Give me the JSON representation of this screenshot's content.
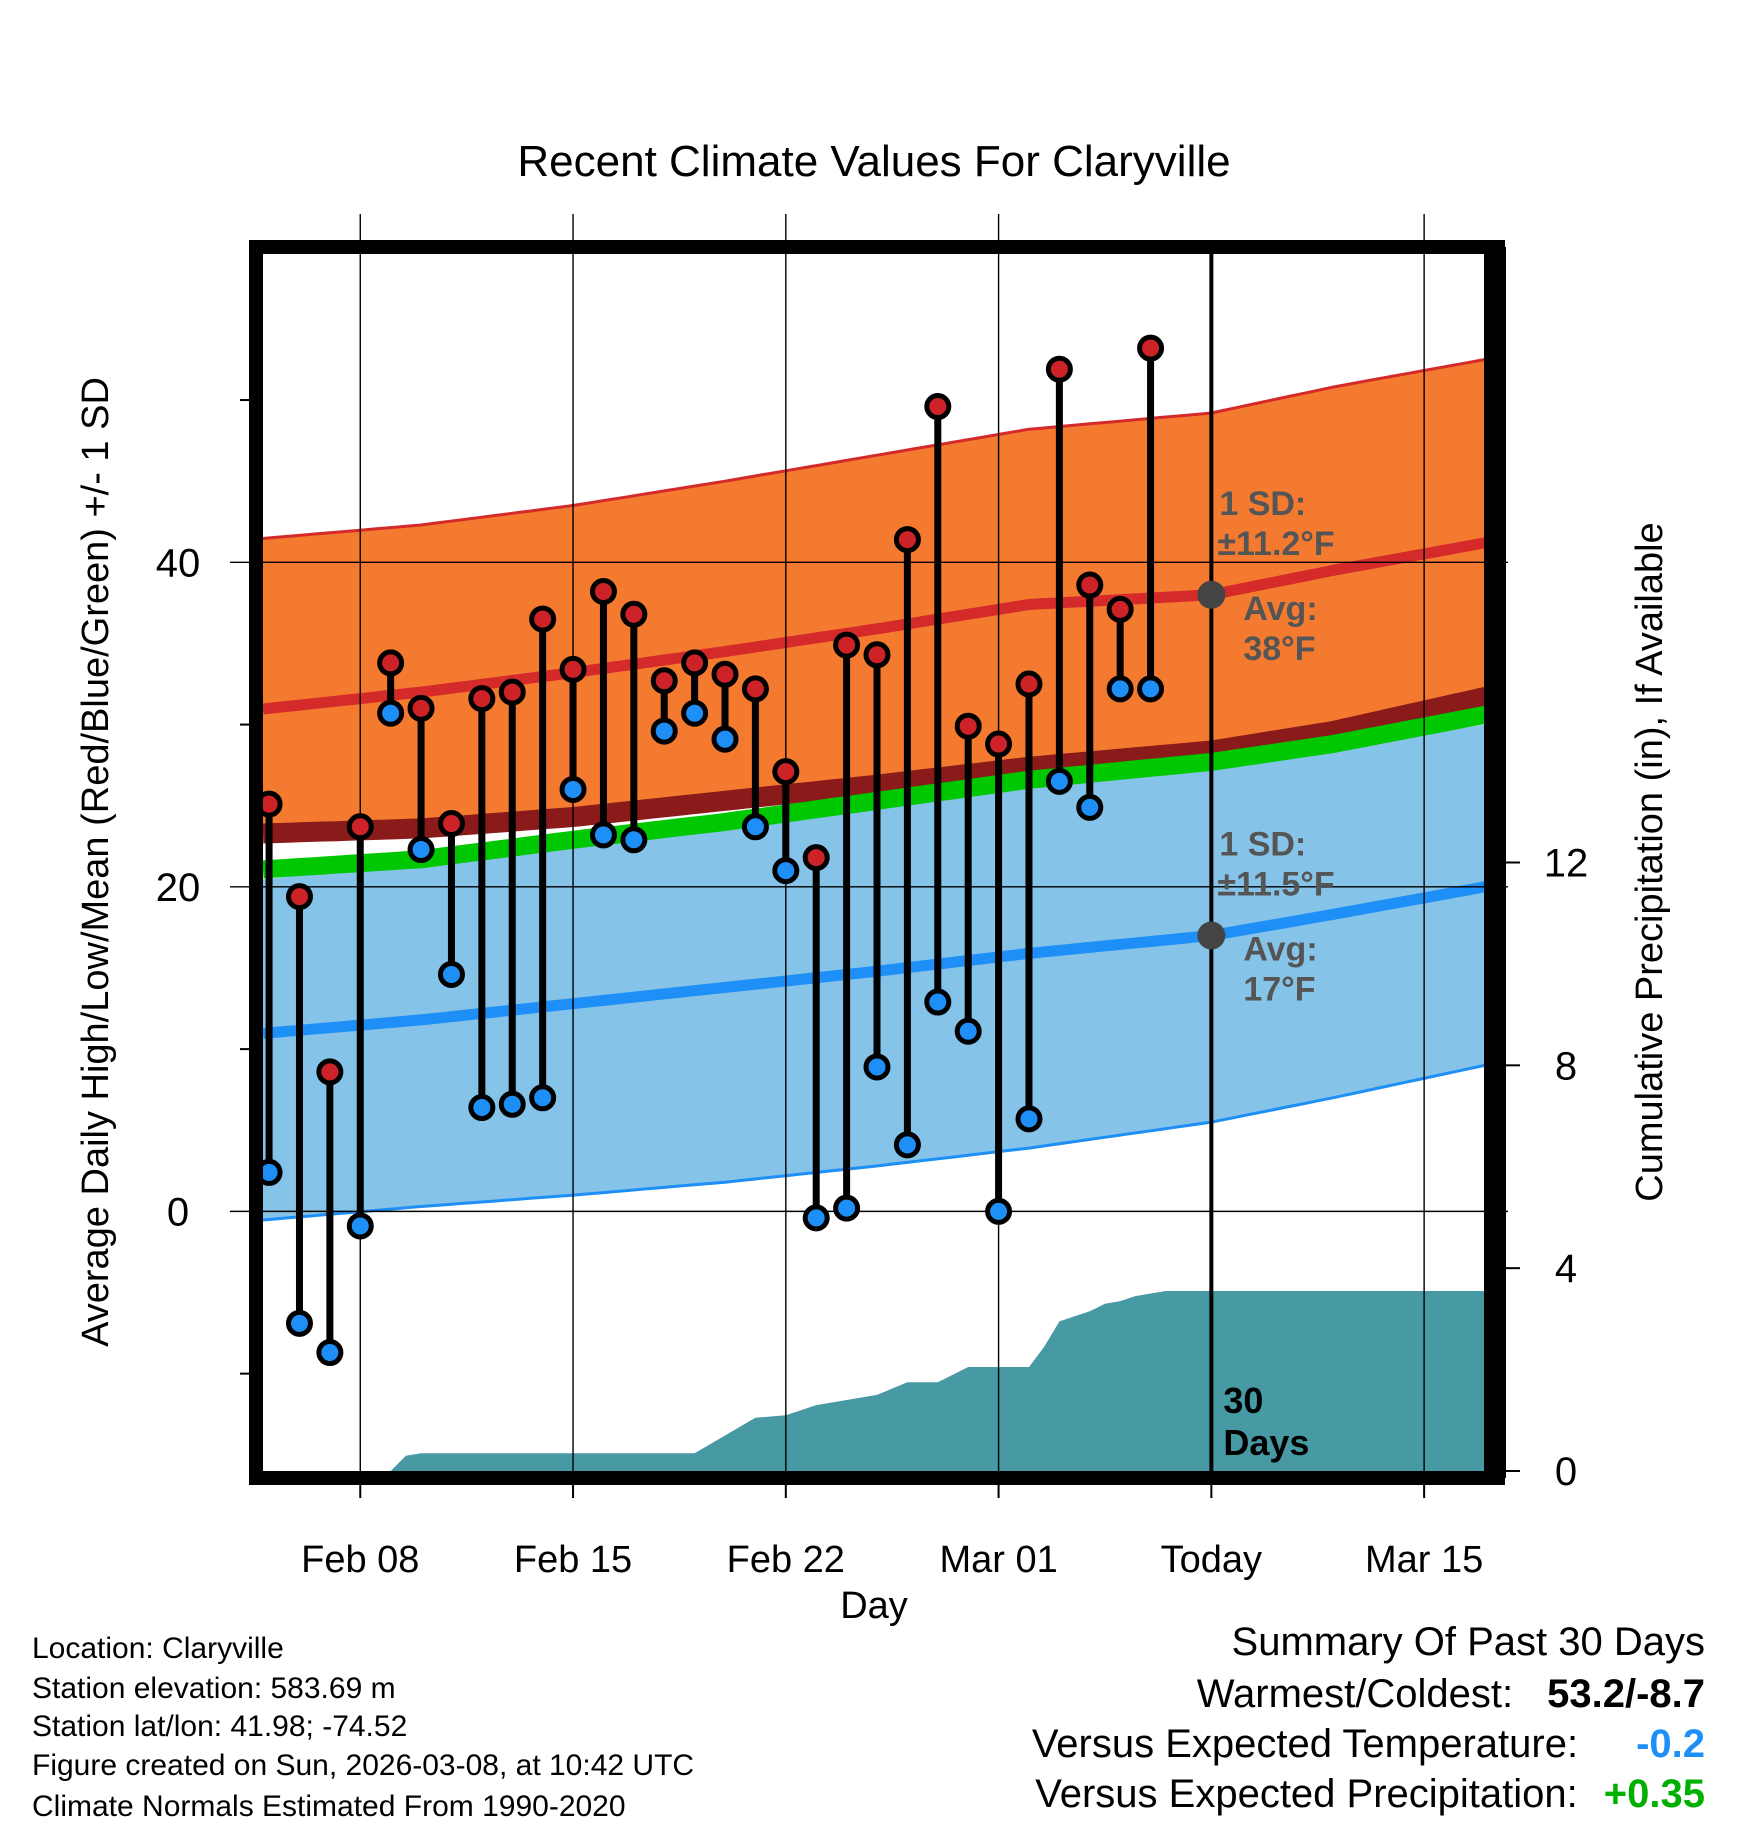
{
  "chart_data": {
    "type": "line",
    "title": "Recent Climate Values For Claryville",
    "xlabel": "Day",
    "ylabel_left": "Average Daily High/Low/Mean (Red/Blue/Green) +/- 1 SD",
    "ylabel_right": "Cumulative Precipitation (in), If Available",
    "x_ticks": [
      {
        "day": 8,
        "label": "Feb 08"
      },
      {
        "day": 15,
        "label": "Feb 15"
      },
      {
        "day": 22,
        "label": "Feb 22"
      },
      {
        "day": 29,
        "label": "Mar 01"
      },
      {
        "day": 36,
        "label": "Today"
      },
      {
        "day": 43,
        "label": "Mar 15"
      }
    ],
    "x_range": [
      4.8,
      45.2
    ],
    "y_left_range": [
      -16,
      59
    ],
    "y_left_ticks": [
      0,
      20,
      40
    ],
    "y_left_minor_ticks": [
      -10,
      10,
      30,
      50
    ],
    "y_right_range": [
      0,
      24
    ],
    "y_right_ticks": [
      0,
      4,
      8,
      12
    ],
    "normals": {
      "days": [
        5,
        10,
        15,
        20,
        25,
        30,
        36,
        40,
        45
      ],
      "high_mean": [
        31,
        32,
        33.2,
        34.5,
        35.9,
        37.4,
        38.0,
        39.5,
        41.2
      ],
      "high_plus_sd": [
        41.5,
        42.3,
        43.5,
        45.0,
        46.6,
        48.2,
        49.2,
        50.8,
        52.5
      ],
      "high_minus_sd": [
        23.3,
        23.6,
        24.3,
        25.3,
        26.3,
        27.4,
        28.4,
        29.6,
        31.7
      ],
      "low_mean": [
        11,
        11.8,
        12.8,
        13.8,
        14.8,
        15.9,
        17.0,
        18.3,
        20.0
      ],
      "low_plus_sd": [
        20.5,
        21.5,
        22.6,
        23.8,
        25.0,
        26.2,
        27.5,
        28.5,
        30.0
      ],
      "low_minus_sd": [
        -0.5,
        0.3,
        1.0,
        1.8,
        2.8,
        3.9,
        5.5,
        7.0,
        9.0
      ],
      "mean_line": [
        21.1,
        21.7,
        22.9,
        24.0,
        25.3,
        26.6,
        27.7,
        28.8,
        30.6
      ]
    },
    "series": [
      {
        "name": "Daily High",
        "days": [
          5,
          6,
          7,
          8,
          9,
          10,
          11,
          12,
          13,
          14,
          15,
          16,
          17,
          18,
          19,
          20,
          21,
          22,
          23,
          24,
          25,
          26,
          27,
          28,
          29,
          30,
          31,
          32,
          33,
          34,
          35
        ],
        "values": [
          25.1,
          19.4,
          8.6,
          23.7,
          33.8,
          31.0,
          23.9,
          31.6,
          32.0,
          36.5,
          33.4,
          38.2,
          36.8,
          32.7,
          33.8,
          33.1,
          32.2,
          27.1,
          21.8,
          34.9,
          34.3,
          41.4,
          49.6,
          29.9,
          28.8,
          32.5,
          51.9,
          38.6,
          37.1,
          53.2,
          null
        ]
      },
      {
        "name": "Daily Low",
        "days": [
          5,
          6,
          7,
          8,
          9,
          10,
          11,
          12,
          13,
          14,
          15,
          16,
          17,
          18,
          19,
          20,
          21,
          22,
          23,
          24,
          25,
          26,
          27,
          28,
          29,
          30,
          31,
          32,
          33,
          34,
          35
        ],
        "values": [
          2.4,
          -6.9,
          -8.7,
          -0.9,
          30.7,
          22.3,
          14.6,
          6.4,
          6.6,
          7.0,
          26.0,
          23.2,
          22.9,
          29.6,
          30.7,
          29.1,
          23.7,
          21.0,
          -0.4,
          0.2,
          8.9,
          4.1,
          12.9,
          11.1,
          0.0,
          5.7,
          26.5,
          24.9,
          32.2,
          32.2,
          null
        ]
      },
      {
        "name": "Cumulative Precipitation",
        "days": [
          5,
          9,
          9.5,
          10,
          11,
          12,
          13,
          14,
          15,
          16,
          17,
          18,
          19,
          20,
          21,
          22,
          23,
          24,
          25,
          26,
          27,
          28,
          29,
          30,
          30.5,
          31,
          31.5,
          32,
          32.5,
          33,
          33.5,
          34,
          34.5,
          35,
          36,
          45.2
        ],
        "values": [
          0,
          0,
          0.3,
          0.35,
          0.35,
          0.35,
          0.35,
          0.35,
          0.35,
          0.35,
          0.35,
          0.35,
          0.35,
          0.7,
          1.05,
          1.1,
          1.3,
          1.4,
          1.5,
          1.75,
          1.75,
          2.05,
          2.05,
          2.05,
          2.45,
          2.95,
          3.05,
          3.15,
          3.3,
          3.35,
          3.45,
          3.5,
          3.55,
          3.55,
          3.55,
          3.55
        ]
      }
    ],
    "annotations": {
      "high_sd_line1": "1 SD:",
      "high_sd_line2": "±11.2°F",
      "high_avg_line1": "Avg:",
      "high_avg_line2": "38°F",
      "high_avg_value": 38,
      "low_sd_line1": "1 SD:",
      "low_sd_line2": "±11.5°F",
      "low_avg_line1": "Avg:",
      "low_avg_line2": "17°F",
      "low_avg_value": 17,
      "window_line1": "30",
      "window_line2": "Days"
    },
    "colors": {
      "high_band": "#f47a30",
      "high_line": "#d42a2a",
      "low_band": "#86c3e8",
      "low_line": "#1e8ff6",
      "mean_band": "#00c800",
      "mean_dark": "#8b1a1a",
      "precip": "#479aa3",
      "high_dot": "#cc2228",
      "low_dot": "#1e8ff6",
      "annotation": "#555555"
    }
  },
  "footer": {
    "location": "Location: Claryville",
    "elevation": "Station elevation: 583.69 m",
    "latlon": "Station lat/lon: 41.98; -74.52",
    "created": "Figure created on Sun, 2026-03-08, at 10:42 UTC",
    "normals": "Climate Normals Estimated From 1990-2020"
  },
  "summary": {
    "title": "Summary Of Past 30 Days",
    "warm_cold_label": "Warmest/Coldest:",
    "warm_cold_value": "53.2/-8.7",
    "temp_label": "Versus Expected Temperature:",
    "temp_value": "-0.2",
    "temp_color": "#1e8ff6",
    "precip_label": "Versus Expected Precipitation:",
    "precip_value": "+0.35",
    "precip_color": "#00b000"
  }
}
